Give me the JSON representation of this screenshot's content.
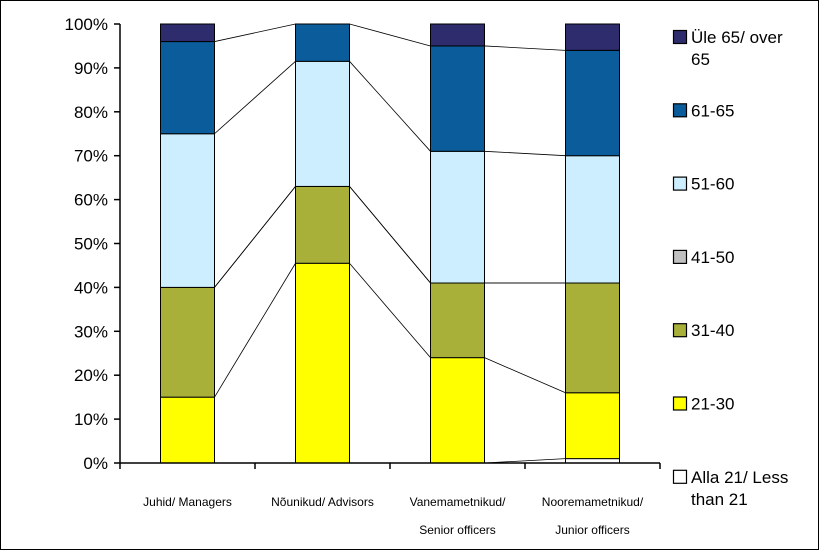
{
  "chart_data": {
    "type": "bar",
    "stacked": true,
    "normalized": true,
    "categories": [
      [
        "Juhid/ Managers"
      ],
      [
        "Nõunikud/ Advisors"
      ],
      [
        "Vanemametnikud/",
        "Senior officers"
      ],
      [
        "Nooremametnikud/",
        "Junior officers"
      ]
    ],
    "y_ticks": [
      "0%",
      "10%",
      "20%",
      "30%",
      "40%",
      "50%",
      "60%",
      "70%",
      "80%",
      "90%",
      "100%"
    ],
    "ylim": [
      0,
      100
    ],
    "legend_position": "right",
    "series": [
      {
        "name": [
          "Alla 21/ Less",
          "than 21"
        ],
        "color": "#ffffff",
        "values": [
          0,
          0,
          0,
          1
        ]
      },
      {
        "name": [
          "21-30"
        ],
        "color": "#ffff00",
        "values": [
          15,
          45.5,
          24,
          15
        ]
      },
      {
        "name": [
          "31-40"
        ],
        "color": "#a8b03a",
        "values": [
          25,
          17.5,
          17,
          25
        ]
      },
      {
        "name": [
          "41-50"
        ],
        "color": "#c0c0c0",
        "values": [
          0,
          0,
          0,
          0
        ]
      },
      {
        "name": [
          "51-60"
        ],
        "color": "#cceeff",
        "values": [
          35,
          28.5,
          30,
          29
        ]
      },
      {
        "name": [
          "61-65"
        ],
        "color": "#0b5c9a",
        "values": [
          21,
          8.5,
          24,
          24
        ]
      },
      {
        "name": [
          "Üle 65/ over",
          "65"
        ],
        "color": "#2e2c6c",
        "values": [
          4,
          0,
          5,
          6
        ]
      }
    ]
  }
}
